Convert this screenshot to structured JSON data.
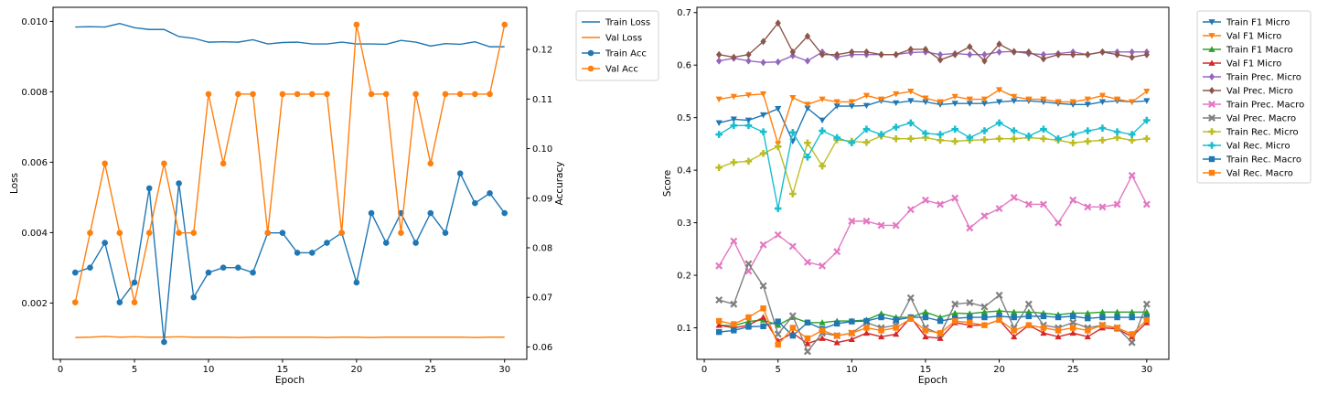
{
  "chart_data": [
    {
      "type": "line",
      "xlabel": "Epoch",
      "ylabel_left": "Loss",
      "ylabel_right": "Accuracy",
      "xlim": [
        -0.5,
        31.5
      ],
      "ylim_left": [
        0.0004,
        0.0104
      ],
      "ylim_right": [
        0.0575,
        0.1285
      ],
      "xticks": [
        "0",
        "5",
        "10",
        "15",
        "20",
        "25",
        "30"
      ],
      "yticks_left": [
        "0.002",
        "0.004",
        "0.006",
        "0.008",
        "0.010"
      ],
      "yticks_right": [
        "0.06",
        "0.07",
        "0.08",
        "0.09",
        "0.10",
        "0.11",
        "0.12"
      ],
      "grid": false,
      "legend_position": "outside-right-top",
      "x": [
        1,
        2,
        3,
        4,
        5,
        6,
        7,
        8,
        9,
        10,
        11,
        12,
        13,
        14,
        15,
        16,
        17,
        18,
        19,
        20,
        21,
        22,
        23,
        24,
        25,
        26,
        27,
        28,
        29,
        30
      ],
      "series": [
        {
          "name": "Train Loss",
          "axis": "left",
          "color": "#1f77b4",
          "marker": "none",
          "values": [
            0.00984,
            0.00985,
            0.00984,
            0.00994,
            0.00982,
            0.00977,
            0.00977,
            0.00957,
            0.00952,
            0.00941,
            0.00942,
            0.00941,
            0.00948,
            0.00936,
            0.0094,
            0.00941,
            0.00936,
            0.00936,
            0.00941,
            0.00936,
            0.00936,
            0.00935,
            0.00946,
            0.00941,
            0.0093,
            0.00937,
            0.00935,
            0.00942,
            0.00928,
            0.00928
          ]
        },
        {
          "name": "Val Loss",
          "axis": "left",
          "color": "#ff7f0e",
          "marker": "none",
          "values": [
            0.00102,
            0.00103,
            0.00105,
            0.00103,
            0.00104,
            0.00103,
            0.00103,
            0.00104,
            0.00103,
            0.00103,
            0.00103,
            0.00102,
            0.00103,
            0.00103,
            0.00103,
            0.00103,
            0.00103,
            0.00102,
            0.00103,
            0.00103,
            0.00102,
            0.00103,
            0.00103,
            0.00103,
            0.00103,
            0.00103,
            0.00103,
            0.00102,
            0.00103,
            0.00103
          ]
        },
        {
          "name": "Train Acc",
          "axis": "right",
          "color": "#1f77b4",
          "marker": "circle",
          "values": [
            0.075,
            0.076,
            0.081,
            0.069,
            0.073,
            0.092,
            0.061,
            0.093,
            0.07,
            0.075,
            0.076,
            0.076,
            0.075,
            0.083,
            0.083,
            0.079,
            0.079,
            0.081,
            0.083,
            0.073,
            0.087,
            0.081,
            0.087,
            0.081,
            0.087,
            0.083,
            0.095,
            0.089,
            0.091,
            0.087
          ]
        },
        {
          "name": "Val Acc",
          "axis": "right",
          "color": "#ff7f0e",
          "marker": "circle",
          "values": [
            0.069,
            0.083,
            0.097,
            0.083,
            0.069,
            0.083,
            0.097,
            0.083,
            0.083,
            0.111,
            0.097,
            0.111,
            0.111,
            0.083,
            0.111,
            0.111,
            0.111,
            0.111,
            0.083,
            0.125,
            0.111,
            0.111,
            0.083,
            0.111,
            0.097,
            0.111,
            0.111,
            0.111,
            0.111,
            0.125
          ]
        }
      ]
    },
    {
      "type": "line",
      "xlabel": "Epoch",
      "ylabel": "Score",
      "xlim": [
        -0.5,
        31.5
      ],
      "ylim": [
        0.04,
        0.71
      ],
      "xticks": [
        "0",
        "5",
        "10",
        "15",
        "20",
        "25",
        "30"
      ],
      "yticks": [
        "0.1",
        "0.2",
        "0.3",
        "0.4",
        "0.5",
        "0.6",
        "0.7"
      ],
      "grid": false,
      "legend_position": "outside-right-top",
      "x": [
        1,
        2,
        3,
        4,
        5,
        6,
        7,
        8,
        9,
        10,
        11,
        12,
        13,
        14,
        15,
        16,
        17,
        18,
        19,
        20,
        21,
        22,
        23,
        24,
        25,
        26,
        27,
        28,
        29,
        30
      ],
      "series": [
        {
          "name": "Train F1 Micro",
          "color": "#1f77b4",
          "marker": "tri_down",
          "values": [
            0.49,
            0.497,
            0.495,
            0.505,
            0.517,
            0.455,
            0.518,
            0.495,
            0.522,
            0.522,
            0.523,
            0.532,
            0.528,
            0.532,
            0.53,
            0.525,
            0.527,
            0.527,
            0.527,
            0.53,
            0.532,
            0.532,
            0.53,
            0.527,
            0.525,
            0.525,
            0.53,
            0.532,
            0.53,
            0.532
          ]
        },
        {
          "name": "Val F1 Micro",
          "color": "#ff7f0e",
          "marker": "tri_down",
          "values": [
            0.535,
            0.54,
            0.543,
            0.545,
            0.45,
            0.538,
            0.525,
            0.535,
            0.53,
            0.53,
            0.542,
            0.535,
            0.545,
            0.55,
            0.537,
            0.53,
            0.54,
            0.535,
            0.535,
            0.553,
            0.54,
            0.535,
            0.535,
            0.53,
            0.53,
            0.535,
            0.542,
            0.535,
            0.53,
            0.55
          ]
        },
        {
          "name": "Train F1 Macro",
          "color": "#2ca02c",
          "marker": "tri_up",
          "values": [
            0.105,
            0.104,
            0.112,
            0.115,
            0.105,
            0.12,
            0.11,
            0.11,
            0.113,
            0.113,
            0.115,
            0.127,
            0.12,
            0.12,
            0.13,
            0.12,
            0.128,
            0.127,
            0.13,
            0.132,
            0.13,
            0.13,
            0.128,
            0.125,
            0.128,
            0.128,
            0.13,
            0.13,
            0.13,
            0.13
          ]
        },
        {
          "name": "Val F1 Micro",
          "color": "#d62728",
          "marker": "tri_up",
          "values": [
            0.105,
            0.1,
            0.105,
            0.12,
            0.075,
            0.09,
            0.07,
            0.08,
            0.072,
            0.078,
            0.09,
            0.083,
            0.088,
            0.12,
            0.083,
            0.08,
            0.11,
            0.105,
            0.105,
            0.115,
            0.083,
            0.105,
            0.09,
            0.083,
            0.09,
            0.083,
            0.1,
            0.098,
            0.083,
            0.11
          ]
        },
        {
          "name": "Train Prec. Micro",
          "color": "#9467bd",
          "marker": "diamond",
          "values": [
            0.608,
            0.613,
            0.608,
            0.605,
            0.606,
            0.618,
            0.608,
            0.625,
            0.615,
            0.62,
            0.62,
            0.62,
            0.62,
            0.624,
            0.625,
            0.62,
            0.622,
            0.62,
            0.62,
            0.625,
            0.626,
            0.622,
            0.62,
            0.622,
            0.625,
            0.62,
            0.625,
            0.625,
            0.625,
            0.625
          ]
        },
        {
          "name": "Val Prec. Micro",
          "color": "#8c564b",
          "marker": "diamond",
          "values": [
            0.62,
            0.615,
            0.62,
            0.645,
            0.68,
            0.625,
            0.655,
            0.62,
            0.62,
            0.625,
            0.625,
            0.62,
            0.62,
            0.63,
            0.63,
            0.61,
            0.62,
            0.635,
            0.608,
            0.64,
            0.625,
            0.625,
            0.612,
            0.62,
            0.62,
            0.62,
            0.625,
            0.62,
            0.615,
            0.62
          ]
        },
        {
          "name": "Train Prec. Macro",
          "color": "#e377c2",
          "marker": "x",
          "values": [
            0.218,
            0.265,
            0.208,
            0.258,
            0.277,
            0.255,
            0.225,
            0.218,
            0.245,
            0.303,
            0.303,
            0.295,
            0.295,
            0.325,
            0.343,
            0.335,
            0.347,
            0.29,
            0.313,
            0.327,
            0.348,
            0.335,
            0.335,
            0.3,
            0.343,
            0.33,
            0.33,
            0.335,
            0.39,
            0.335
          ]
        },
        {
          "name": "Val Prec. Macro",
          "color": "#7f7f7f",
          "marker": "x",
          "values": [
            0.153,
            0.145,
            0.222,
            0.18,
            0.088,
            0.123,
            0.055,
            0.09,
            0.085,
            0.09,
            0.11,
            0.1,
            0.105,
            0.157,
            0.1,
            0.088,
            0.145,
            0.148,
            0.14,
            0.162,
            0.1,
            0.145,
            0.105,
            0.1,
            0.11,
            0.1,
            0.105,
            0.1,
            0.072,
            0.145
          ]
        },
        {
          "name": "Train Rec. Micro",
          "color": "#bcbd22",
          "marker": "plus",
          "values": [
            0.405,
            0.415,
            0.417,
            0.432,
            0.445,
            0.355,
            0.452,
            0.408,
            0.458,
            0.455,
            0.453,
            0.465,
            0.46,
            0.46,
            0.462,
            0.457,
            0.455,
            0.457,
            0.458,
            0.46,
            0.46,
            0.462,
            0.46,
            0.457,
            0.452,
            0.455,
            0.457,
            0.462,
            0.457,
            0.46
          ]
        },
        {
          "name": "Val Rec. Micro",
          "color": "#17becf",
          "marker": "plus",
          "values": [
            0.468,
            0.485,
            0.485,
            0.473,
            0.327,
            0.472,
            0.425,
            0.475,
            0.462,
            0.452,
            0.478,
            0.468,
            0.482,
            0.49,
            0.47,
            0.468,
            0.478,
            0.462,
            0.475,
            0.49,
            0.475,
            0.465,
            0.478,
            0.46,
            0.468,
            0.475,
            0.48,
            0.473,
            0.468,
            0.495
          ]
        },
        {
          "name": "Train Rec. Macro",
          "color": "#1f77b4",
          "marker": "square",
          "values": [
            0.092,
            0.095,
            0.102,
            0.103,
            0.112,
            0.085,
            0.11,
            0.098,
            0.108,
            0.112,
            0.113,
            0.12,
            0.115,
            0.12,
            0.12,
            0.113,
            0.118,
            0.12,
            0.12,
            0.122,
            0.12,
            0.122,
            0.122,
            0.12,
            0.122,
            0.118,
            0.12,
            0.12,
            0.12,
            0.12
          ]
        },
        {
          "name": "Val Rec. Macro",
          "color": "#ff7f0e",
          "marker": "square",
          "values": [
            0.113,
            0.107,
            0.12,
            0.137,
            0.068,
            0.1,
            0.08,
            0.095,
            0.085,
            0.09,
            0.1,
            0.095,
            0.1,
            0.117,
            0.095,
            0.09,
            0.113,
            0.11,
            0.105,
            0.115,
            0.095,
            0.105,
            0.1,
            0.095,
            0.1,
            0.095,
            0.105,
            0.1,
            0.088,
            0.115
          ]
        }
      ]
    }
  ]
}
